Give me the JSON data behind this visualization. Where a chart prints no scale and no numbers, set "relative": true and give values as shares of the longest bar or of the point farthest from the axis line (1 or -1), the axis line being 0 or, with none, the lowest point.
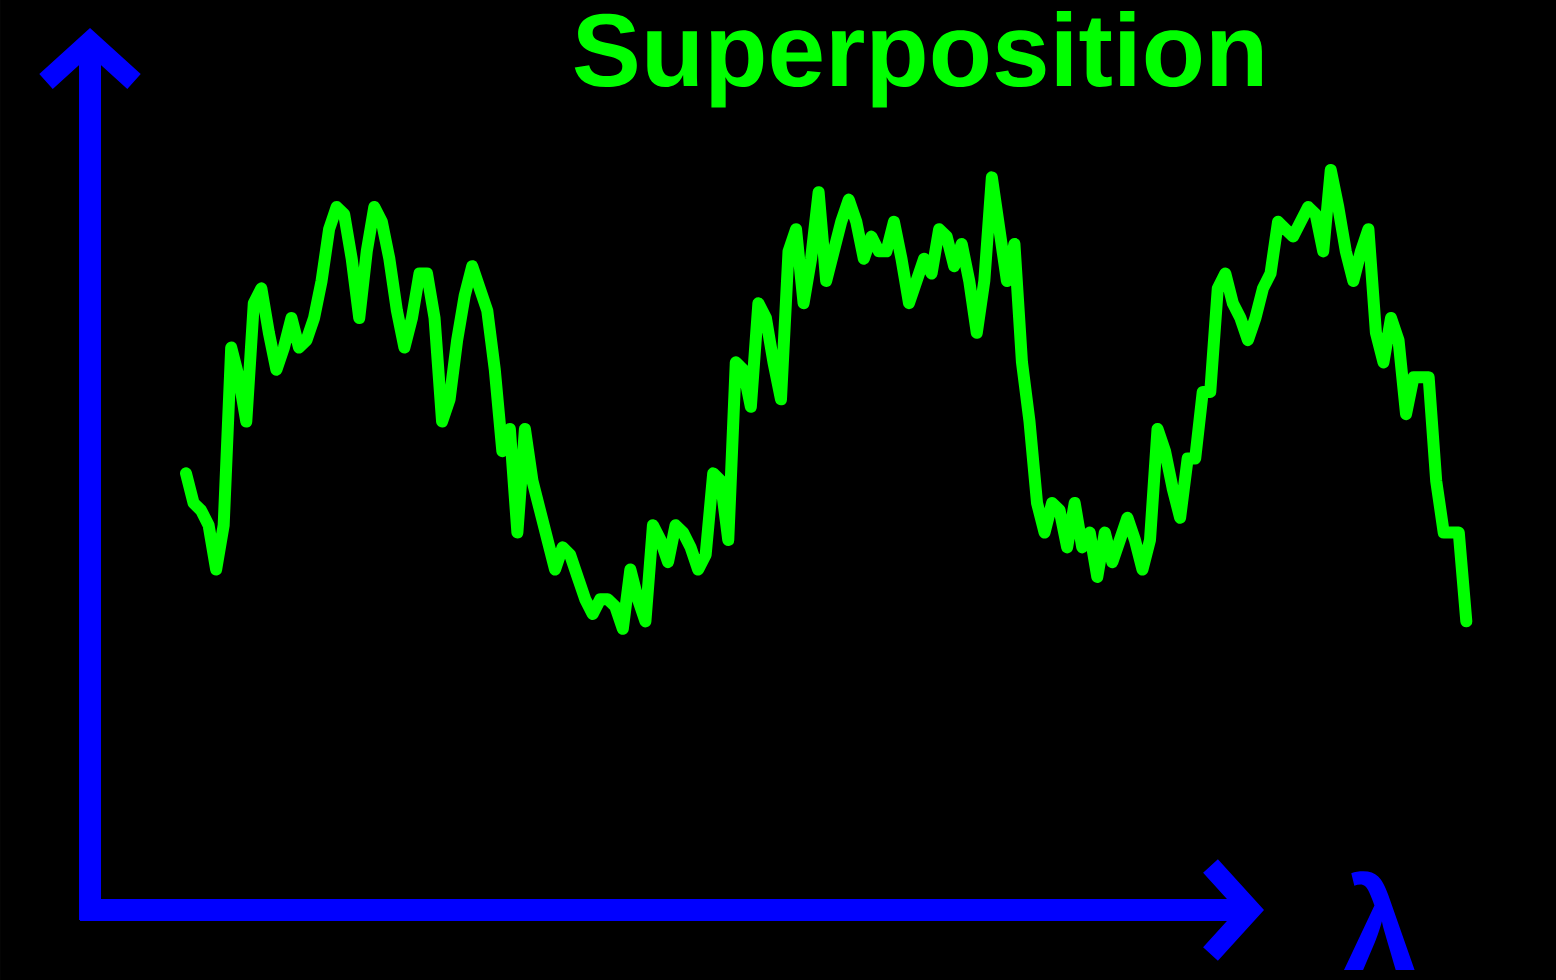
{
  "chart_data": {
    "type": "line",
    "title": "Superposition",
    "xlabel": "λ",
    "relative": true,
    "marker": "none",
    "line_style": "solid",
    "categories": [
      null,
      null,
      null,
      null,
      null,
      null,
      null,
      null,
      null,
      null,
      null,
      null,
      null,
      null,
      null,
      null,
      null,
      null,
      null,
      null,
      null,
      null,
      null,
      null,
      null,
      null,
      null,
      null,
      null,
      null,
      null,
      null,
      null,
      null,
      null,
      null,
      null,
      null,
      null,
      null,
      null,
      null,
      null,
      null,
      null,
      null,
      null,
      null,
      null,
      null,
      null,
      null,
      null,
      null,
      null,
      null,
      null,
      null,
      null,
      null,
      null,
      null,
      null,
      null,
      null,
      null,
      null,
      null,
      null,
      null,
      null,
      null,
      null,
      null,
      null,
      null,
      null,
      null,
      null,
      null,
      null,
      null,
      null,
      null,
      null,
      null,
      null,
      null,
      null,
      null,
      null,
      null,
      null,
      null,
      null,
      null,
      null,
      null,
      null,
      null,
      null,
      null,
      null,
      null,
      null,
      null,
      null,
      null,
      null,
      null,
      null,
      null,
      null,
      null,
      null,
      null,
      null,
      null,
      null,
      null,
      null,
      null,
      null,
      null,
      null,
      null,
      null,
      null,
      null,
      null,
      null,
      null,
      null,
      null,
      null,
      null,
      null,
      null,
      null,
      null,
      null,
      null,
      null,
      null,
      null,
      null,
      null,
      null,
      null,
      null,
      null,
      null,
      null,
      null,
      null,
      null,
      null,
      null,
      null,
      null,
      null,
      null,
      null,
      null,
      null,
      null,
      null,
      null,
      null,
      null,
      null
    ],
    "series": [
      {
        "color": "#00ff00",
        "values": [
          0.59,
          0.55,
          0.54,
          0.52,
          0.46,
          0.52,
          0.76,
          0.72,
          0.66,
          0.82,
          0.84,
          0.78,
          0.73,
          0.76,
          0.8,
          0.76,
          0.77,
          0.8,
          0.85,
          0.92,
          0.95,
          0.94,
          0.88,
          0.8,
          0.89,
          0.95,
          0.93,
          0.88,
          0.81,
          0.76,
          0.8,
          0.86,
          0.86,
          0.8,
          0.66,
          0.69,
          0.77,
          0.83,
          0.87,
          0.84,
          0.81,
          0.73,
          0.62,
          0.65,
          0.51,
          0.65,
          0.58,
          0.54,
          0.5,
          0.46,
          0.49,
          0.48,
          0.45,
          0.42,
          0.4,
          0.42,
          0.42,
          0.41,
          0.38,
          0.46,
          0.42,
          0.39,
          0.52,
          0.5,
          0.47,
          0.52,
          0.51,
          0.49,
          0.46,
          0.48,
          0.59,
          0.58,
          0.5,
          0.74,
          0.73,
          0.68,
          0.82,
          0.8,
          0.74,
          0.69,
          0.89,
          0.92,
          0.82,
          0.88,
          0.97,
          0.85,
          0.89,
          0.93,
          0.96,
          0.93,
          0.88,
          0.91,
          0.89,
          0.89,
          0.93,
          0.88,
          0.82,
          0.85,
          0.88,
          0.86,
          0.92,
          0.91,
          0.87,
          0.9,
          0.85,
          0.78,
          0.85,
          0.99,
          0.92,
          0.85,
          0.9,
          0.74,
          0.66,
          0.55,
          0.51,
          0.55,
          0.54,
          0.49,
          0.55,
          0.49,
          0.51,
          0.45,
          0.51,
          0.47,
          0.5,
          0.53,
          0.5,
          0.46,
          0.5,
          0.65,
          0.62,
          0.57,
          0.53,
          0.61,
          0.61,
          0.7,
          0.7,
          0.84,
          0.86,
          0.82,
          0.8,
          0.77,
          0.8,
          0.84,
          0.86,
          0.93,
          0.92,
          0.91,
          0.93,
          0.95,
          0.94,
          0.89,
          1,
          0.95,
          0.89,
          0.85,
          0.89,
          0.92,
          0.78,
          0.74,
          0.8,
          0.77,
          0.67,
          0.72,
          0.72,
          0.72,
          0.58,
          0.51,
          0.51,
          0.51,
          0.39
        ]
      }
    ]
  }
}
